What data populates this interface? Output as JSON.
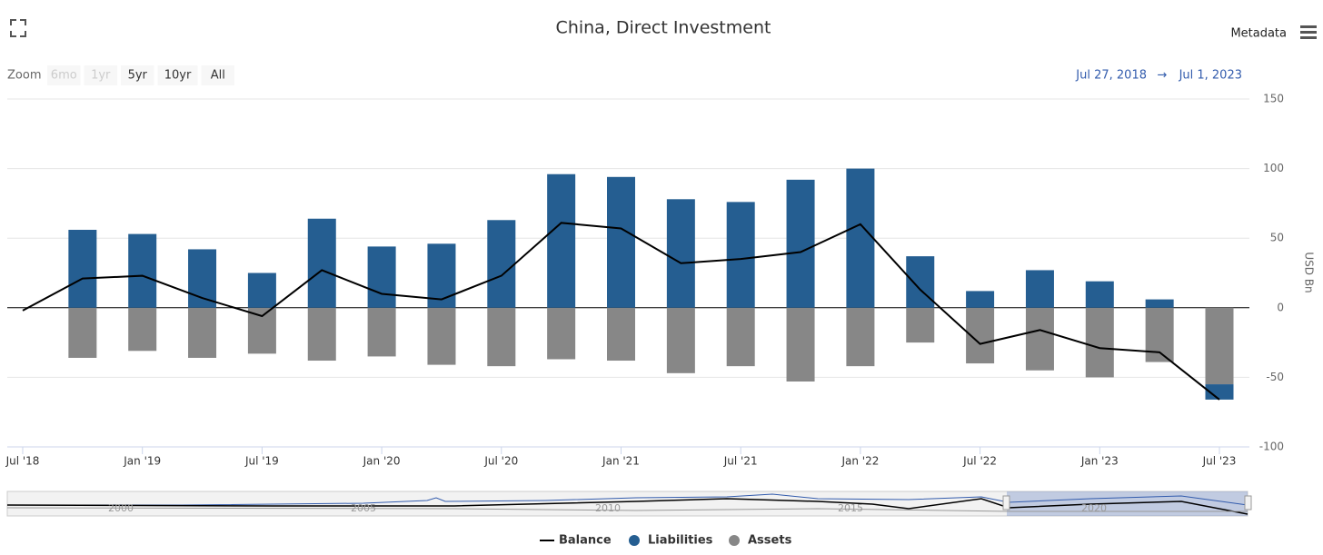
{
  "chart_data": {
    "type": "bar",
    "title": "China, Direct Investment",
    "zoom_label": "Zoom",
    "zoom_buttons": [
      "6mo",
      "1yr",
      "5yr",
      "10yr",
      "All"
    ],
    "range_from": "Jul 27, 2018",
    "range_arrow": "→",
    "range_to": "Jul 1, 2023",
    "metadata_label": "Metadata",
    "y_axis_label": "USD Bn",
    "x": [
      "2018-07",
      "2018-10",
      "2019-01",
      "2019-04",
      "2019-07",
      "2019-10",
      "2020-01",
      "2020-04",
      "2020-07",
      "2020-10",
      "2021-01",
      "2021-04",
      "2021-07",
      "2021-10",
      "2022-01",
      "2022-04",
      "2022-07",
      "2022-10",
      "2023-01",
      "2023-04",
      "2023-07"
    ],
    "series": [
      {
        "name": "Balance",
        "kind": "line",
        "color": "#000000",
        "values": [
          -2,
          21,
          23,
          7,
          -6,
          27,
          10,
          6,
          23,
          61,
          57,
          32,
          35,
          40,
          60,
          13,
          -26,
          -16,
          -29,
          -32,
          -66
        ]
      },
      {
        "name": "Liabilities",
        "kind": "bar",
        "color": "#255e91",
        "values": [
          null,
          56,
          53,
          42,
          25,
          64,
          44,
          46,
          63,
          96,
          94,
          78,
          76,
          92,
          100,
          37,
          12,
          27,
          19,
          6,
          -11
        ]
      },
      {
        "name": "Assets",
        "kind": "bar",
        "color": "#878787",
        "values": [
          null,
          -36,
          -31,
          -36,
          -33,
          -38,
          -35,
          -41,
          -42,
          -37,
          -38,
          -47,
          -42,
          -53,
          -42,
          -25,
          -40,
          -45,
          -50,
          -39,
          -55
        ]
      }
    ],
    "stacked": true,
    "ylim": [
      -100,
      150
    ],
    "yticks": [
      -100,
      -50,
      0,
      50,
      100,
      150
    ],
    "xticks": [
      {
        "value": "2018-07",
        "label": "Jul '18"
      },
      {
        "value": "2019-01",
        "label": "Jan '19"
      },
      {
        "value": "2019-07",
        "label": "Jul '19"
      },
      {
        "value": "2020-01",
        "label": "Jan '20"
      },
      {
        "value": "2020-07",
        "label": "Jul '20"
      },
      {
        "value": "2021-01",
        "label": "Jan '21"
      },
      {
        "value": "2021-07",
        "label": "Jul '21"
      },
      {
        "value": "2022-01",
        "label": "Jan '22"
      },
      {
        "value": "2022-07",
        "label": "Jul '22"
      },
      {
        "value": "2023-01",
        "label": "Jan '23"
      },
      {
        "value": "2023-07",
        "label": "Jul '23"
      }
    ],
    "grid": true,
    "legend": "bottom",
    "navigator_labels": [
      "2000",
      "2005",
      "2010",
      "2015",
      "2020"
    ]
  }
}
